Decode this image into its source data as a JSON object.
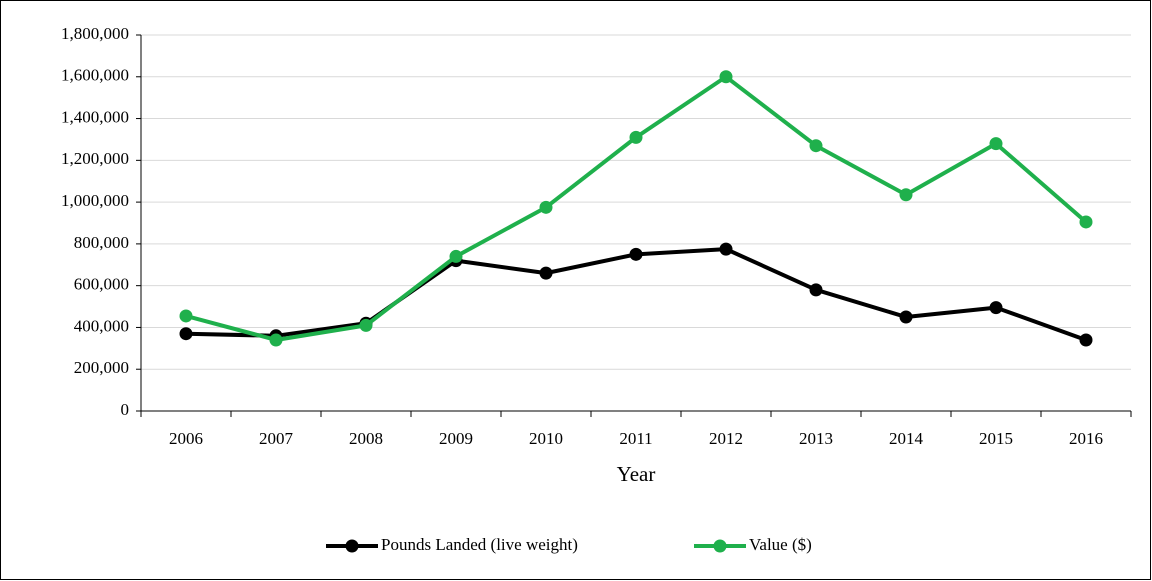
{
  "chart_data": {
    "type": "line",
    "x_label": "Year",
    "categories": [
      "2006",
      "2007",
      "2008",
      "2009",
      "2010",
      "2011",
      "2012",
      "2013",
      "2014",
      "2015",
      "2016"
    ],
    "series": [
      {
        "name": "Pounds Landed (live weight)",
        "color": "#000000",
        "values": [
          370000,
          360000,
          420000,
          720000,
          660000,
          750000,
          775000,
          580000,
          450000,
          495000,
          340000
        ]
      },
      {
        "name": "Value ($)",
        "color": "#1fb04c",
        "values": [
          455000,
          340000,
          410000,
          740000,
          975000,
          1310000,
          1600000,
          1270000,
          1035000,
          1280000,
          905000
        ]
      }
    ],
    "ylim": [
      0,
      1800000
    ],
    "yticks": [
      0,
      {
        "value": 200000,
        "label": "200,000"
      },
      {
        "value": 400000,
        "label": "400,000"
      },
      {
        "value": 600000,
        "label": "600,000"
      },
      {
        "value": 800000,
        "label": "800,000"
      },
      {
        "value": 1000000,
        "label": "1,000,000"
      },
      {
        "value": 1200000,
        "label": "1,200,000"
      },
      {
        "value": 1400000,
        "label": "1,400,000"
      },
      {
        "value": 1600000,
        "label": "1,600,000"
      },
      {
        "value": 1800000,
        "label": "1,800,000"
      }
    ],
    "grid": true,
    "legend": "bottom"
  }
}
